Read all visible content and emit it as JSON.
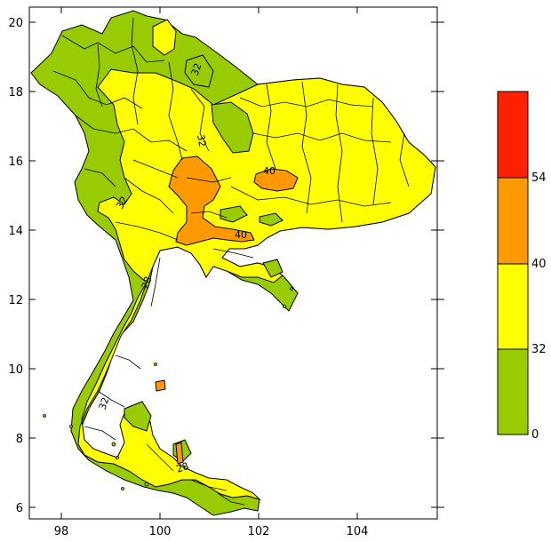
{
  "map": {
    "x_ticks": [
      "98",
      "100",
      "102",
      "104"
    ],
    "y_ticks": [
      "20",
      "18",
      "16",
      "14",
      "12",
      "10",
      "8",
      "6"
    ],
    "contour_labels": [
      "32",
      "32",
      "40",
      "32",
      "40",
      "28",
      "32",
      "28"
    ]
  },
  "legend": {
    "ticks": [
      "54",
      "40",
      "32",
      "0"
    ],
    "colors": [
      "#ff2200",
      "#ff9900",
      "#ffff00",
      "#99cc00"
    ]
  }
}
